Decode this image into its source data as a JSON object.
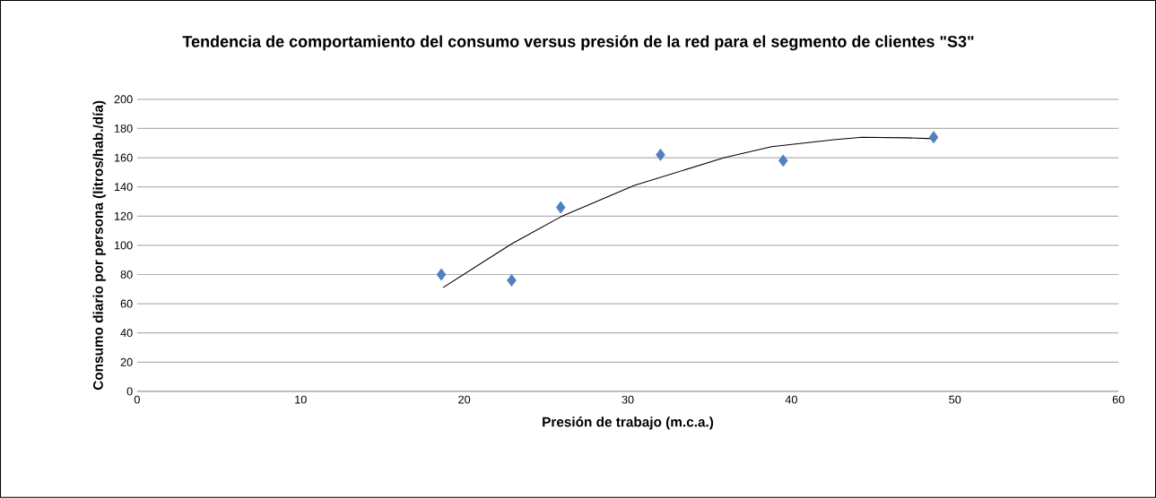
{
  "chart_data": {
    "type": "scatter",
    "title": "Tendencia de comportamiento del consumo versus presión de la red para el segmento de clientes \"S3\"",
    "xlabel": "Presión  de trabajo (m.c.a.)",
    "ylabel": "Consumo diario por persona (litros/hab./día)",
    "x": [
      18.6,
      22.9,
      25.9,
      32.0,
      39.5,
      48.7
    ],
    "series": [
      {
        "color": "#4f81bd",
        "marker": "diamond",
        "values": [
          80,
          76,
          126,
          162,
          158,
          174
        ]
      },
      {
        "type": "line",
        "color": "#000000",
        "marker": "none",
        "line_style": "solid",
        "x": [
          18.7,
          22.9,
          25.9,
          30.4,
          35.9,
          38.8,
          42.6,
          44.3,
          47.1,
          48.7
        ],
        "values": [
          71,
          101,
          119.5,
          141,
          160,
          167.5,
          172.3,
          174,
          173.6,
          173
        ]
      }
    ],
    "xlim": [
      0,
      60
    ],
    "xticks": [
      0,
      10,
      20,
      30,
      40,
      50,
      60
    ],
    "ylim": [
      0,
      200
    ],
    "yticks": [
      0,
      20,
      40,
      60,
      80,
      100,
      120,
      140,
      160,
      180,
      200
    ],
    "grid": "y"
  }
}
